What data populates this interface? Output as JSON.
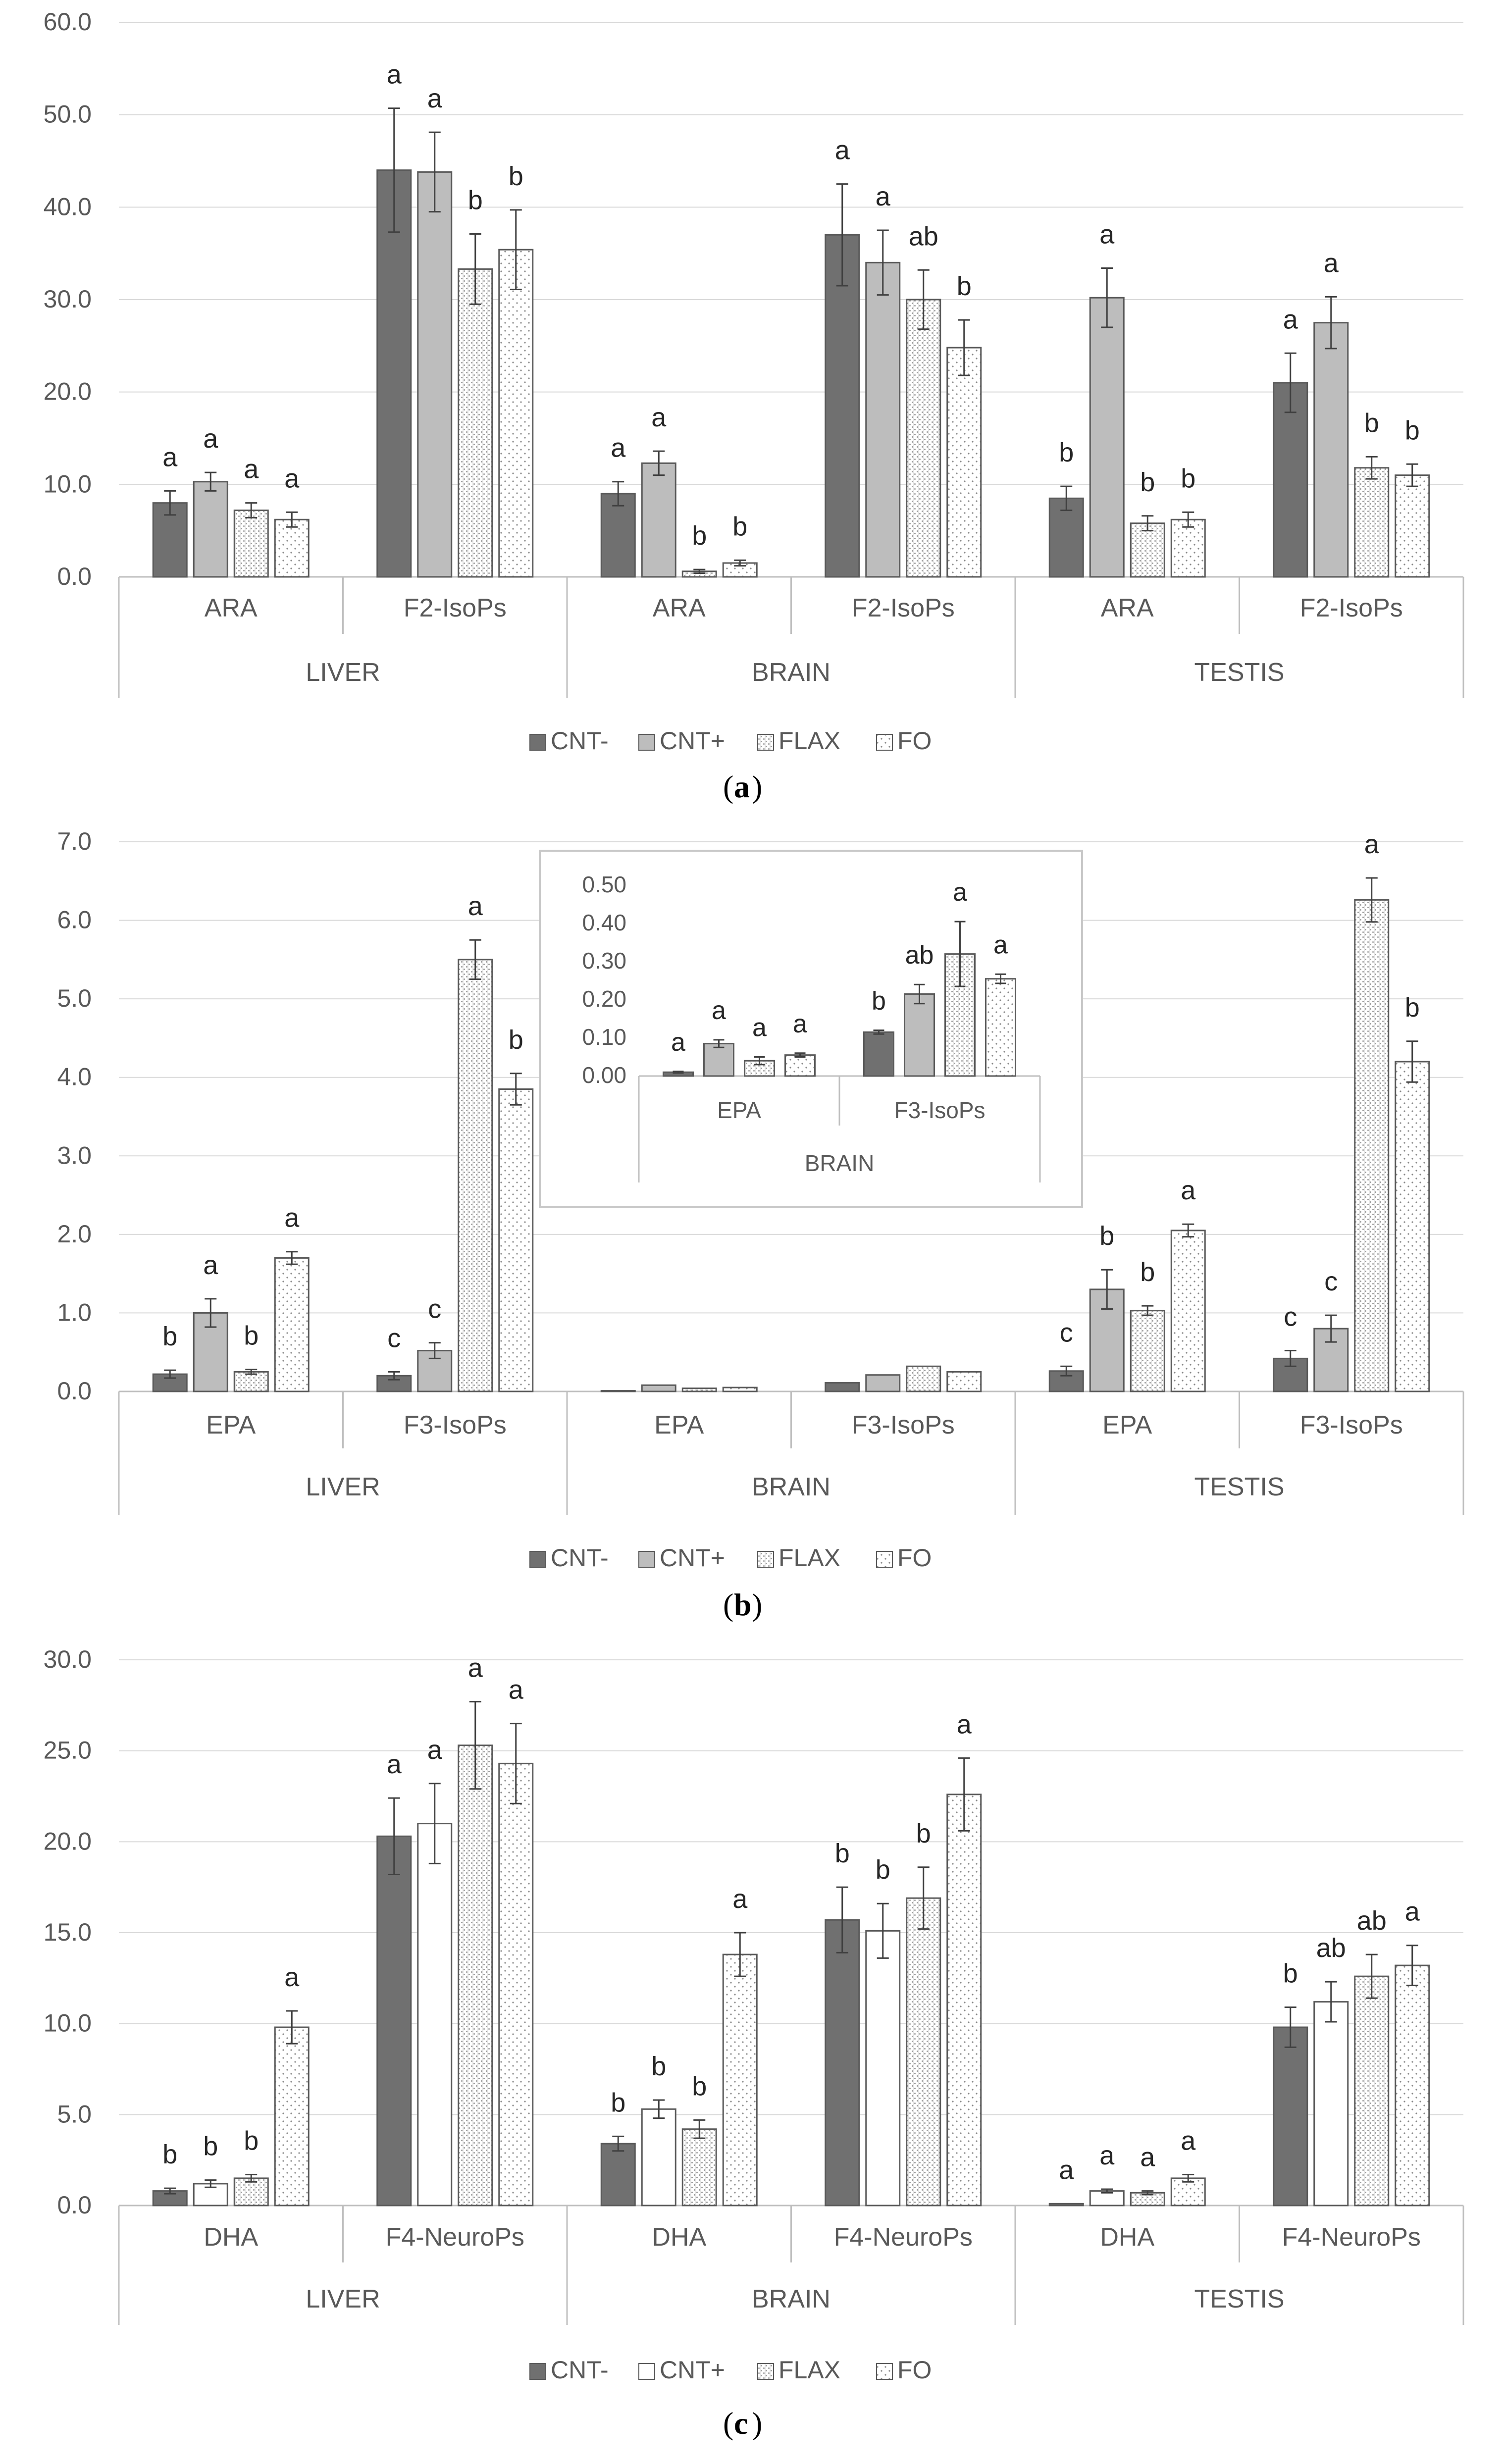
{
  "series_names": [
    "CNT-",
    "CNT+",
    "FLAX",
    "FO"
  ],
  "colors": {
    "cnt_minus": "#707070",
    "cnt_plus": "#bdbdbd",
    "outline": "#5a5a5a",
    "grid": "#d9d9d9",
    "axis": "#bfbfbf",
    "text": "#595959"
  },
  "chart_data": [
    {
      "panel": "(a)",
      "panel_letter": "a",
      "type": "bar",
      "ylim": [
        0,
        60
      ],
      "ytick_step": 10,
      "ytick_labels": [
        "0.0",
        "10.0",
        "20.0",
        "30.0",
        "40.0",
        "50.0",
        "60.0"
      ],
      "groups": [
        "LIVER",
        "BRAIN",
        "TESTIS"
      ],
      "categories": [
        "ARA",
        "F2-IsoPs",
        "ARA",
        "F2-IsoPs",
        "ARA",
        "F2-IsoPs"
      ],
      "legend": [
        "CNT-",
        "CNT+",
        "FLAX",
        "FO"
      ],
      "fills": [
        "solid-dark",
        "solid-light",
        "dots",
        "dots"
      ],
      "series": [
        {
          "name": "CNT-",
          "values": [
            8.0,
            44.0,
            9.0,
            37.0,
            8.5,
            21.0
          ],
          "errors": [
            1.3,
            6.7,
            1.3,
            5.5,
            1.3,
            3.2
          ],
          "letters": [
            "a",
            "a",
            "a",
            "a",
            "b",
            "a"
          ]
        },
        {
          "name": "CNT+",
          "values": [
            10.3,
            43.8,
            12.3,
            34.0,
            30.2,
            27.5
          ],
          "errors": [
            1.0,
            4.3,
            1.3,
            3.5,
            3.2,
            2.8
          ],
          "letters": [
            "a",
            "a",
            "a",
            "a",
            "a",
            "a"
          ]
        },
        {
          "name": "FLAX",
          "values": [
            7.2,
            33.3,
            0.6,
            30.0,
            5.8,
            11.8
          ],
          "errors": [
            0.8,
            3.8,
            0.2,
            3.2,
            0.8,
            1.2
          ],
          "letters": [
            "a",
            "b",
            "b",
            "ab",
            "b",
            "b"
          ]
        },
        {
          "name": "FO",
          "values": [
            6.2,
            35.4,
            1.5,
            24.8,
            6.2,
            11.0
          ],
          "errors": [
            0.8,
            4.3,
            0.3,
            3.0,
            0.8,
            1.2
          ],
          "letters": [
            "a",
            "b",
            "b",
            "b",
            "b",
            "b"
          ]
        }
      ],
      "inset": null
    },
    {
      "panel": "(b)",
      "panel_letter": "b",
      "type": "bar",
      "ylim": [
        0,
        7
      ],
      "ytick_step": 1,
      "ytick_labels": [
        "0.0",
        "1.0",
        "2.0",
        "3.0",
        "4.0",
        "5.0",
        "6.0",
        "7.0"
      ],
      "groups": [
        "LIVER",
        "BRAIN",
        "TESTIS"
      ],
      "categories": [
        "EPA",
        "F3-IsoPs",
        "EPA",
        "F3-IsoPs",
        "EPA",
        "F3-IsoPs"
      ],
      "legend": [
        "CNT-",
        "CNT+",
        "FLAX",
        "FO"
      ],
      "fills": [
        "solid-dark",
        "solid-light",
        "dots",
        "dots"
      ],
      "series": [
        {
          "name": "CNT-",
          "values": [
            0.22,
            0.2,
            0.01,
            0.11,
            0.26,
            0.42
          ],
          "errors": [
            0.05,
            0.05,
            0,
            0,
            0.06,
            0.1
          ],
          "letters": [
            "b",
            "c",
            "",
            "",
            "c",
            "c"
          ]
        },
        {
          "name": "CNT+",
          "values": [
            1.0,
            0.52,
            0.08,
            0.21,
            1.3,
            0.8
          ],
          "errors": [
            0.18,
            0.1,
            0,
            0,
            0.25,
            0.17
          ],
          "letters": [
            "a",
            "c",
            "",
            "",
            "b",
            "c"
          ]
        },
        {
          "name": "FLAX",
          "values": [
            0.25,
            5.5,
            0.04,
            0.32,
            1.03,
            6.26
          ],
          "errors": [
            0.03,
            0.25,
            0,
            0,
            0.06,
            0.28
          ],
          "letters": [
            "b",
            "a",
            "",
            "",
            "b",
            "a"
          ]
        },
        {
          "name": "FO",
          "values": [
            1.7,
            3.85,
            0.05,
            0.25,
            2.05,
            4.2
          ],
          "errors": [
            0.08,
            0.2,
            0,
            0,
            0.08,
            0.26
          ],
          "letters": [
            "a",
            "b",
            "",
            "",
            "a",
            "b"
          ]
        }
      ],
      "inset": {
        "type": "bar",
        "ylim": [
          0,
          0.5
        ],
        "ytick_step": 0.1,
        "ytick_labels": [
          "0.00",
          "0.10",
          "0.20",
          "0.30",
          "0.40",
          "0.50"
        ],
        "groups": [
          "BRAIN"
        ],
        "categories": [
          "EPA",
          "F3-IsoPs"
        ],
        "series": [
          {
            "name": "CNT-",
            "values": [
              0.01,
              0.115
            ],
            "errors": [
              0.002,
              0.005
            ],
            "letters": [
              "a",
              "b"
            ]
          },
          {
            "name": "CNT+",
            "values": [
              0.085,
              0.215
            ],
            "errors": [
              0.01,
              0.025
            ],
            "letters": [
              "a",
              "ab"
            ]
          },
          {
            "name": "FLAX",
            "values": [
              0.04,
              0.32
            ],
            "errors": [
              0.01,
              0.085
            ],
            "letters": [
              "a",
              "a"
            ]
          },
          {
            "name": "FO",
            "values": [
              0.055,
              0.255
            ],
            "errors": [
              0.005,
              0.012
            ],
            "letters": [
              "a",
              "a"
            ]
          }
        ]
      }
    },
    {
      "panel": "(c)",
      "panel_letter": "c",
      "type": "bar",
      "ylim": [
        0,
        30
      ],
      "ytick_step": 5,
      "ytick_labels": [
        "0.0",
        "5.0",
        "10.0",
        "15.0",
        "20.0",
        "25.0",
        "30.0"
      ],
      "groups": [
        "LIVER",
        "BRAIN",
        "TESTIS"
      ],
      "categories": [
        "DHA",
        "F4-NeuroPs",
        "DHA",
        "F4-NeuroPs",
        "DHA",
        "F4-NeuroPs"
      ],
      "legend": [
        "CNT-",
        "CNT+",
        "FLAX",
        "FO"
      ],
      "fills": [
        "solid-dark",
        "outline",
        "dots",
        "dots"
      ],
      "series": [
        {
          "name": "CNT-",
          "values": [
            0.8,
            20.3,
            3.4,
            15.7,
            0.1,
            9.8
          ],
          "errors": [
            0.15,
            2.1,
            0.4,
            1.8,
            0,
            1.1
          ],
          "letters": [
            "b",
            "a",
            "b",
            "b",
            "a",
            "b"
          ]
        },
        {
          "name": "CNT+",
          "values": [
            1.2,
            21.0,
            5.3,
            15.1,
            0.8,
            11.2
          ],
          "errors": [
            0.2,
            2.2,
            0.5,
            1.5,
            0.1,
            1.1
          ],
          "letters": [
            "b",
            "a",
            "b",
            "b",
            "a",
            "ab"
          ]
        },
        {
          "name": "FLAX",
          "values": [
            1.5,
            25.3,
            4.2,
            16.9,
            0.7,
            12.6
          ],
          "errors": [
            0.2,
            2.4,
            0.5,
            1.7,
            0.1,
            1.2
          ],
          "letters": [
            "b",
            "a",
            "b",
            "b",
            "a",
            "ab"
          ]
        },
        {
          "name": "FO",
          "values": [
            9.8,
            24.3,
            13.8,
            22.6,
            1.5,
            13.2
          ],
          "errors": [
            0.9,
            2.2,
            1.2,
            2.0,
            0.2,
            1.1
          ],
          "letters": [
            "a",
            "a",
            "a",
            "a",
            "a",
            "a"
          ]
        }
      ],
      "inset": null
    }
  ]
}
